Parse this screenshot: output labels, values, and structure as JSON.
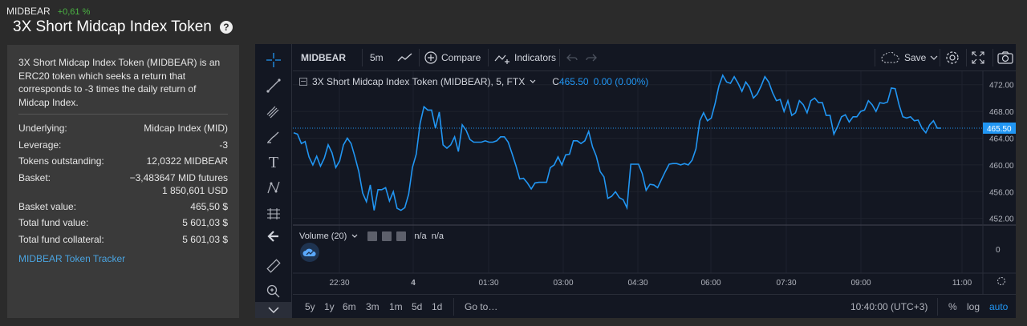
{
  "header": {
    "ticker_symbol": "MIDBEAR",
    "ticker_change": "+0,61 %",
    "title": "3X Short Midcap Index Token",
    "help_icon": "question-circle-icon"
  },
  "info": {
    "description": "3X Short Midcap Index Token (MIDBEAR) is an ERC20 token which seeks a return that corresponds to -3 times the daily return of Midcap Index.",
    "rows": [
      {
        "label": "Underlying:",
        "value": "Midcap Index (MID)"
      },
      {
        "label": "Leverage:",
        "value": "-3"
      },
      {
        "label": "Tokens outstanding:",
        "value": "12,0322 MIDBEAR"
      }
    ],
    "basket_label": "Basket:",
    "basket_value_1": "−3,483647 MID futures",
    "basket_value_2": "1 850,601 USD",
    "rows2": [
      {
        "label": "Basket value:",
        "value": "465,50 $"
      },
      {
        "label": "Total fund value:",
        "value": "5 601,03 $"
      },
      {
        "label": "Total fund collateral:",
        "value": "5 601,03 $"
      }
    ],
    "tracker_link": "MIDBEAR Token Tracker"
  },
  "toolbar": {
    "symbol": "MIDBEAR",
    "interval": "5m",
    "compare": "Compare",
    "indicators": "Indicators",
    "save": "Save"
  },
  "legend": {
    "series_title": "3X Short Midcap Index Token (MIDBEAR), 5, FTX",
    "close_label": "C",
    "close_value": "465.50",
    "change_value": "0.00 (0.00%)"
  },
  "volume": {
    "label": "Volume (20)",
    "values": "n/a  n/a",
    "axis_zero": "0"
  },
  "bottom": {
    "ranges": [
      "5y",
      "1y",
      "6m",
      "3m",
      "1m",
      "5d",
      "1d"
    ],
    "goto": "Go to…",
    "clock": "10:40:00 (UTC+3)",
    "pct": "%",
    "log": "log",
    "auto": "auto"
  },
  "colors": {
    "accent": "#2196f3",
    "positive": "#4bb543",
    "chart_bg": "#131722",
    "price_line": "#2196f3"
  },
  "chart_data": {
    "type": "line",
    "x_ticks": [
      "22:30",
      "4",
      "01:30",
      "03:00",
      "04:30",
      "06:00",
      "07:30",
      "09:00",
      "11:00"
    ],
    "y_ticks": [
      452,
      456,
      460,
      464,
      468,
      472
    ],
    "last_price_label": "465.50",
    "ylim": [
      451,
      474
    ],
    "series": [
      {
        "values": [
          464.8,
          464.6,
          463.2,
          463.5,
          461.2,
          460.0,
          461.3,
          459.8,
          461.0,
          463.0,
          461.8,
          459.6,
          460.6,
          463.0,
          464.0,
          463.2,
          461.2,
          459.0,
          455.8,
          454.5,
          457.0,
          453.2,
          456.3,
          456.3,
          456.6,
          454.6,
          456.0,
          453.5,
          453.2,
          453.6,
          455.6,
          459.6,
          461.6,
          466.2,
          468.7,
          468.2,
          468.2,
          465.5,
          467.9,
          463.0,
          462.5,
          463.0,
          464.2,
          462.0,
          466.0,
          465.2,
          463.8,
          463.4,
          463.4,
          463.4,
          463.6,
          463.4,
          463.4,
          463.6,
          464.2,
          464.2,
          463.4,
          461.7,
          459.9,
          457.9,
          458.0,
          457.3,
          456.4,
          457.3,
          457.4,
          457.4,
          457.4,
          459.6,
          460.0,
          461.2,
          460.0,
          461.5,
          461.6,
          463.6,
          463.6,
          463.2,
          463.6,
          465.0,
          462.7,
          461.3,
          459.0,
          458.2,
          455.0,
          455.3,
          456.0,
          455.1,
          454.8,
          453.6,
          460.1,
          460.1,
          460.1,
          458.7,
          456.2,
          457.1,
          457.0,
          456.6,
          457.8,
          459.0,
          460.1,
          460.2,
          460.2,
          460.0,
          460.2,
          460.0,
          460.7,
          462.4,
          466.6,
          467.8,
          466.6,
          467.0,
          469.2,
          471.8,
          473.4,
          472.4,
          472.2,
          473.2,
          472.2,
          471.0,
          472.4,
          471.6,
          470.0,
          470.6,
          471.8,
          473.2,
          472.4,
          470.8,
          469.6,
          469.8,
          468.0,
          469.6,
          467.4,
          467.8,
          469.6,
          469.0,
          467.8,
          469.6,
          470.0,
          469.3,
          469.3,
          467.4,
          467.4,
          464.6,
          465.8,
          467.2,
          467.5,
          466.4,
          467.2,
          467.2,
          468.0,
          468.2,
          469.6,
          469.0,
          468.0,
          469.3,
          469.2,
          469.4,
          471.5,
          471.4,
          469.0,
          467.2,
          467.0,
          467.2,
          466.6,
          466.7,
          465.5,
          464.8,
          466.0,
          466.6,
          465.5,
          465.5
        ]
      }
    ]
  }
}
